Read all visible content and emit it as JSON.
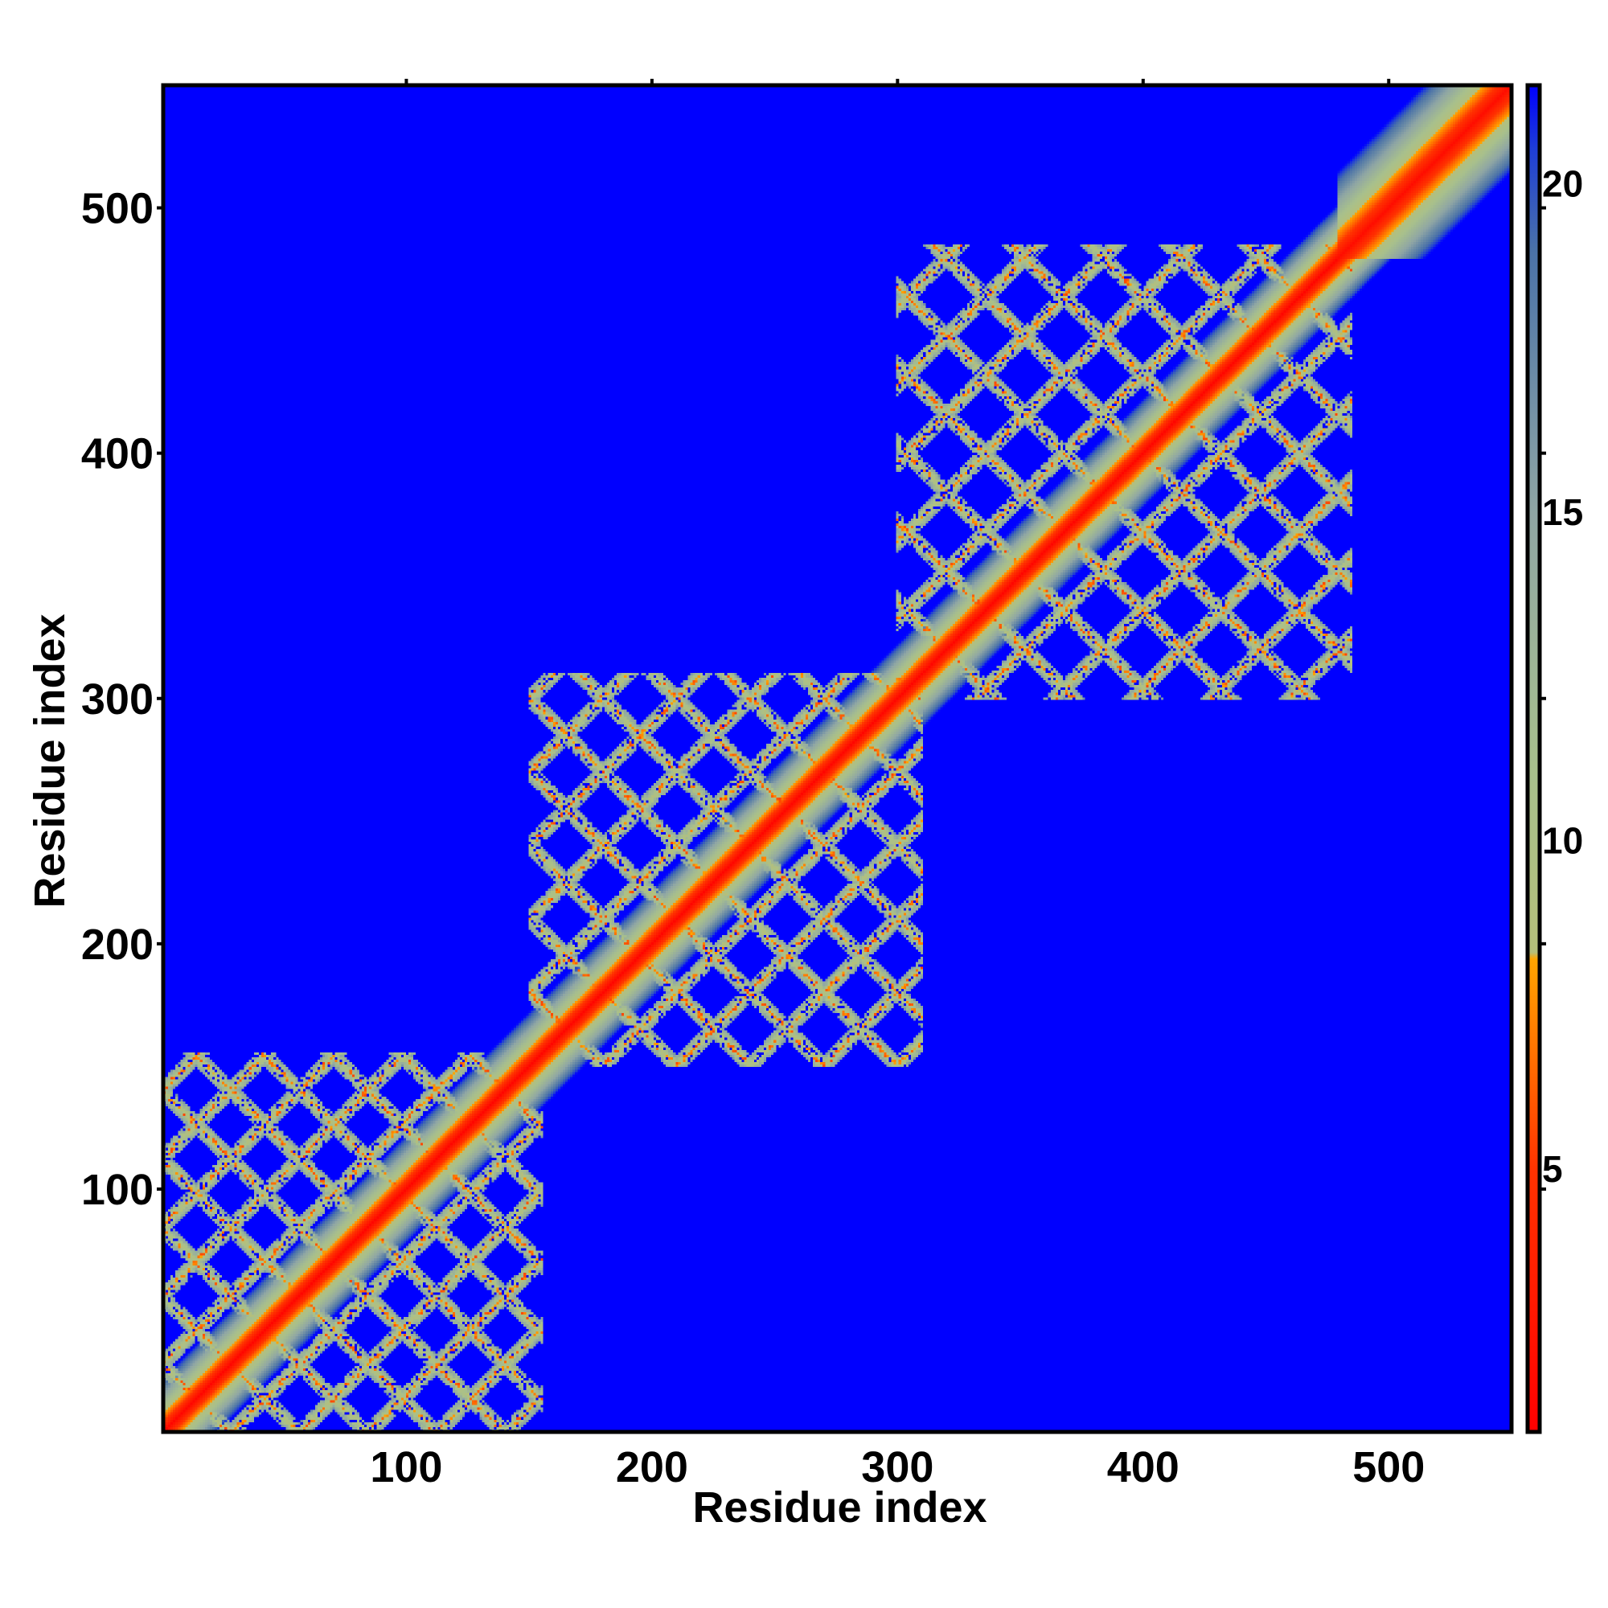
{
  "chart_data": {
    "type": "heatmap",
    "title": "",
    "xlabel": "Residue index",
    "ylabel": "Residue index",
    "xlim": [
      1,
      550
    ],
    "ylim": [
      1,
      550
    ],
    "x_ticks": [
      100,
      200,
      300,
      400,
      500
    ],
    "y_ticks": [
      100,
      200,
      300,
      400,
      500
    ],
    "x_tick_labels": [
      "100",
      "200",
      "300",
      "400",
      "500"
    ],
    "y_tick_labels": [
      "100",
      "200",
      "300",
      "400",
      "500"
    ],
    "matrix": "symmetric residue-residue distance map",
    "diagonal": {
      "from": 1,
      "to": 550,
      "value": 2
    },
    "domains": [
      {
        "start": 1,
        "end": 155,
        "lattice_spacing": 28
      },
      {
        "start": 150,
        "end": 310,
        "lattice_spacing": 30
      },
      {
        "start": 300,
        "end": 485,
        "lattice_spacing": 32
      }
    ],
    "diagonal_band_widening": {
      "start": 480,
      "end": 550
    },
    "colorbar": {
      "range": [
        1,
        21.5
      ],
      "ticks": [
        5,
        10,
        15,
        20
      ],
      "tick_labels": [
        "5",
        "10",
        "15",
        "20"
      ],
      "colors": [
        {
          "value": 1,
          "color": "#ff0000"
        },
        {
          "value": 5,
          "color": "#ff3300"
        },
        {
          "value": 8.2,
          "color": "#ffa500"
        },
        {
          "value": 8.3,
          "color": "#b5bf7a"
        },
        {
          "value": 11,
          "color": "#a8c08c"
        },
        {
          "value": 15,
          "color": "#8fa6a4"
        },
        {
          "value": 19,
          "color": "#4a72a8"
        },
        {
          "value": 20.5,
          "color": "#1f3fd6"
        },
        {
          "value": 21.5,
          "color": "#0000ff"
        }
      ]
    },
    "background_color": "#0000ff",
    "grid": false
  }
}
